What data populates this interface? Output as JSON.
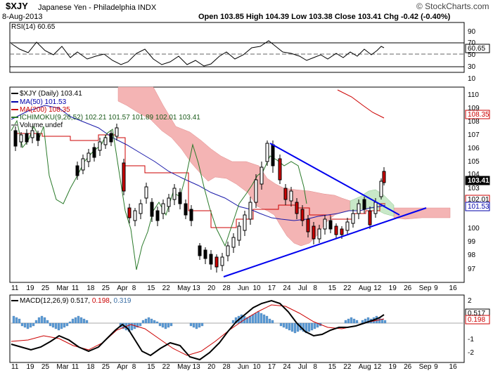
{
  "header": {
    "symbol": "$XJY",
    "name": "Japanese Yen - Philadelphia INDX",
    "date": "8-Aug-2013",
    "ohlc": "Open 103.85  High 104.39  Low 103.38  Close 103.41  Chg -0.42 (-0.40%)",
    "watermark": "© StockCharts.com"
  },
  "colors": {
    "price": "#000000",
    "ma50": "#0000aa",
    "ma200": "#cc0000",
    "cloud_bear": "#f4b4b4",
    "cloud_bull": "#c8e8c8",
    "trendline": "#0000ee",
    "rsi": "#000000",
    "macd": "#000000",
    "signal": "#cc0000",
    "histogram": "#5b9bd5"
  },
  "rsi_panel": {
    "label": "RSI(14) 60.65",
    "value_label": "60.65",
    "ticks": [
      "90",
      "70",
      "50",
      "30",
      "10"
    ]
  },
  "price_panel": {
    "labels": {
      "main": "$XJY (Daily) 103.41",
      "ma50": "MA(50) 101.53",
      "ma200": "MA(200) 108.35",
      "ichimoku": "ICHIMOKU(9,26,52) 102.21 101.57 101.89 102.01 103.41",
      "volume": "Volume undef"
    },
    "ticks": [
      "110",
      "109",
      "108",
      "107",
      "106",
      "105",
      "104",
      "103",
      "102",
      "101",
      "100",
      "99",
      "98",
      "97"
    ],
    "tags": [
      "108.35",
      "103.41",
      "102.01",
      "101.53"
    ]
  },
  "macd_panel": {
    "label_prefix": "MACD(12,26,9)",
    "v1": "0.517",
    "v2": "0.198",
    "v3": "0.319",
    "ticks": [
      "2",
      "1",
      "0",
      "-1",
      "-2"
    ],
    "tags": [
      "0.517",
      "0.198"
    ]
  },
  "x_axis_labels": [
    "11",
    "19",
    "25",
    "Mar",
    "11",
    "18",
    "25",
    "Apr",
    "8",
    "15",
    "22",
    "May",
    "13",
    "20",
    "28",
    "Jun",
    "10",
    "17",
    "24",
    "Jul",
    "8",
    "15",
    "22",
    "Aug",
    "12",
    "19",
    "26",
    "Sep",
    "9",
    "16"
  ],
  "chart_data": {
    "type": "line",
    "title": "$XJY Japanese Yen - Philadelphia INDX",
    "ylim": [
      96.5,
      111
    ],
    "rsi_ylim": [
      0,
      100
    ],
    "macd_ylim": [
      -2.5,
      2.5
    ],
    "series": [
      {
        "name": "$XJY (Daily)",
        "values": [
          107.6,
          107.2,
          106.4,
          107.0,
          107.3,
          106.9,
          106.0,
          106.2,
          106.6,
          105.6,
          104.9,
          104.6,
          105.1,
          105.8,
          106.3,
          106.7,
          106.9,
          107.1,
          107.4,
          106.7,
          105.4,
          104.6,
          103.9,
          103.1,
          102.6,
          102.3,
          101.7,
          101.3,
          101.6,
          102.1,
          102.5,
          104.2,
          103.6,
          102.8,
          101.9,
          101.4,
          101.6,
          102.0,
          102.6,
          101.9,
          101.3,
          100.7,
          101.1,
          101.7,
          102.3,
          103.1,
          102.5,
          101.9,
          101.3,
          100.8,
          101.2,
          100.1,
          99.0,
          98.5,
          98.7,
          98.2,
          97.6,
          97.9,
          97.1,
          98.2,
          99.2,
          99.0,
          99.4,
          99.8,
          100.4,
          101.0,
          101.9,
          102.8,
          103.3,
          104.4,
          105.2,
          106.4,
          106.1,
          105.0,
          104.4,
          103.4,
          102.9,
          102.6,
          102.2,
          103.0,
          102.4,
          101.6,
          101.1,
          100.2,
          100.6,
          101.1,
          100.3,
          100.0,
          99.7,
          100.6,
          101.1,
          100.8,
          101.4,
          101.0,
          100.6,
          100.3,
          100.9,
          101.3,
          101.9,
          102.5,
          102.3,
          101.6,
          100.6,
          101.2,
          101.9,
          102.6,
          103.4,
          103.9,
          103.41
        ]
      },
      {
        "name": "MA(50)",
        "values": [
          106.8,
          106.6,
          106.2,
          106.0,
          105.6,
          105.2,
          104.8,
          104.4,
          104.0,
          103.6,
          103.3,
          103.0,
          102.7,
          102.4,
          102.1,
          101.9,
          101.6,
          101.4,
          101.3,
          101.3,
          101.4,
          101.5,
          101.7,
          101.8,
          101.8,
          101.7,
          101.6,
          101.5,
          101.53
        ]
      },
      {
        "name": "MA(200)",
        "values": [
          110.6,
          110.2,
          109.8,
          109.4,
          108.9,
          108.35
        ]
      },
      {
        "name": "RSI(14)",
        "values": [
          62,
          55,
          48,
          52,
          58,
          61,
          49,
          44,
          40,
          46,
          55,
          60,
          47,
          41,
          38,
          32,
          30,
          35,
          44,
          52,
          60,
          68,
          71,
          66,
          58,
          49,
          45,
          42,
          47,
          50,
          44,
          48,
          52,
          56,
          60.65
        ]
      },
      {
        "name": "MACD",
        "values": [
          -0.6,
          -0.9,
          -1.2,
          -1.0,
          -0.4,
          0.1,
          0.5,
          0.3,
          -0.2,
          -0.8,
          -1.4,
          -1.7,
          -1.5,
          -0.9,
          -0.2,
          0.6,
          1.4,
          1.9,
          1.6,
          1.0,
          0.5,
          0.1,
          -0.2,
          -0.3,
          -0.4,
          -0.2,
          0.0,
          0.2,
          0.517
        ]
      },
      {
        "name": "Signal",
        "values": [
          -0.4,
          -0.6,
          -0.9,
          -1.0,
          -0.8,
          -0.4,
          0.0,
          0.2,
          0.1,
          -0.3,
          -0.8,
          -1.2,
          -1.4,
          -1.2,
          -0.7,
          -0.1,
          0.6,
          1.2,
          1.4,
          1.2,
          0.8,
          0.4,
          0.1,
          -0.1,
          -0.2,
          -0.2,
          -0.1,
          0.1,
          0.198
        ]
      }
    ]
  }
}
